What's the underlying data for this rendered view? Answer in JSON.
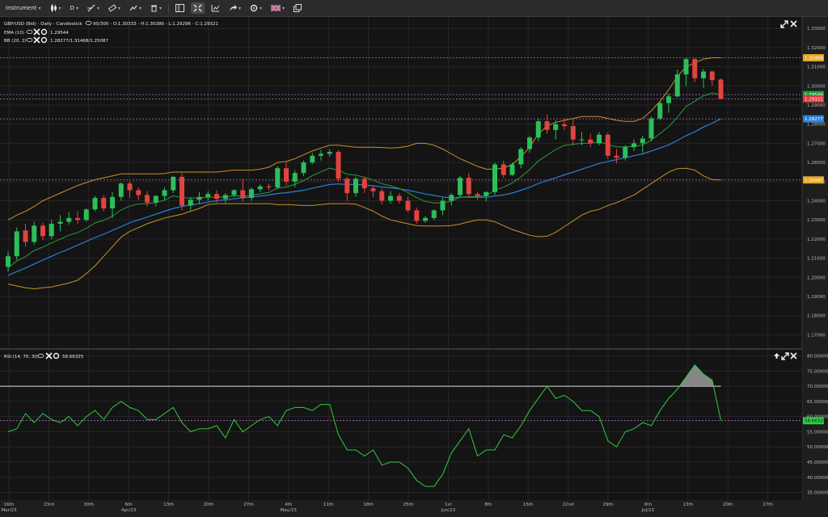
{
  "toolbar": {
    "instrument_label": "Instrument",
    "timeframe_label": "D",
    "icons": [
      "candlestick-icon",
      "draw-line-icon",
      "ruler-icon",
      "drawing-tools-icon",
      "trash-icon",
      "layout-icon",
      "fullscreen-icon",
      "chart-type-icon",
      "share-icon",
      "settings-icon",
      "flag-uk-icon",
      "window-icon"
    ]
  },
  "main_panel": {
    "legend_title": "GBP/USD (Bid) - Daily - Candlestick",
    "legend_ohlc": "90/300 - O:1.30333 - H:1.30386 - L:1.29296 - C:1.29321",
    "ema_label": "EMA (10)",
    "ema_value": "1.29544",
    "bb_label": "BB (20, 2)",
    "bb_value": "1.28277/1.31468/1.25087",
    "price_badges": [
      {
        "text": "1.31468",
        "price": 1.31468,
        "color": "#e4a62a"
      },
      {
        "text": "1.29544",
        "price": 1.29544,
        "color": "#1e9e3a"
      },
      {
        "text": "1.29321",
        "price": 1.29321,
        "color": "#d93a3a"
      },
      {
        "text": "1.28277",
        "price": 1.28277,
        "color": "#2a7fd6"
      },
      {
        "text": "1.25087",
        "price": 1.25087,
        "color": "#e4a62a"
      }
    ],
    "horizontal_lines": [
      1.31468,
      1.29544,
      1.29321,
      1.28277,
      1.25087
    ]
  },
  "rsi_panel": {
    "label": "RSI (14, 70, 30)",
    "value": "58.66325",
    "value_num": 58.66325,
    "level_line": 70,
    "badge_color": "#2ecc40"
  },
  "x_axis": {
    "labels": [
      "16th\nMar/23",
      "23rd",
      "30th",
      "6th\nApr/23",
      "13th",
      "20th",
      "27th",
      "4th\nMay/23",
      "11th",
      "18th",
      "25th",
      "1st\nJun/23",
      "8th",
      "15th",
      "22nd",
      "29th",
      "6th\nJul/23",
      "13th",
      "20th",
      "27th"
    ]
  },
  "chart_data": [
    {
      "type": "candlestick",
      "title": "GBP/USD (Bid) - Daily - Candlestick",
      "y_ticks": [
        1.17,
        1.18,
        1.19,
        1.2,
        1.21,
        1.22,
        1.23,
        1.24,
        1.25,
        1.26,
        1.27,
        1.28,
        1.29,
        1.3,
        1.31,
        1.32,
        1.33
      ],
      "y_tick_labels": [
        "1.17000",
        "1.18000",
        "1.19000",
        "1.20000",
        "1.21000",
        "1.22000",
        "1.23000",
        "1.24000",
        "1.25000",
        "1.26000",
        "1.27000",
        "1.28000",
        "1.29000",
        "1.30000",
        "1.31000",
        "1.32000",
        "1.33000"
      ],
      "ylim": [
        1.163,
        1.336
      ],
      "candles": [
        [
          1.2055,
          1.2135,
          1.203,
          1.211
        ],
        [
          1.211,
          1.226,
          1.209,
          1.224
        ],
        [
          1.2245,
          1.228,
          1.216,
          1.2185
        ],
        [
          1.2185,
          1.229,
          1.217,
          1.227
        ],
        [
          1.227,
          1.2285,
          1.2195,
          1.2215
        ],
        [
          1.2215,
          1.23,
          1.22,
          1.228
        ],
        [
          1.228,
          1.2325,
          1.224,
          1.229
        ],
        [
          1.229,
          1.234,
          1.2275,
          1.231
        ],
        [
          1.231,
          1.2345,
          1.228,
          1.23
        ],
        [
          1.23,
          1.236,
          1.229,
          1.2355
        ],
        [
          1.2355,
          1.2425,
          1.2345,
          1.2415
        ],
        [
          1.2415,
          1.243,
          1.2345,
          1.236
        ],
        [
          1.236,
          1.2445,
          1.231,
          1.242
        ],
        [
          1.242,
          1.2495,
          1.24,
          1.249
        ],
        [
          1.249,
          1.25,
          1.2415,
          1.2455
        ],
        [
          1.2455,
          1.247,
          1.2405,
          1.243
        ],
        [
          1.243,
          1.245,
          1.237,
          1.239
        ],
        [
          1.239,
          1.243,
          1.237,
          1.2425
        ],
        [
          1.2425,
          1.247,
          1.24,
          1.2455
        ],
        [
          1.2455,
          1.253,
          1.244,
          1.2525
        ],
        [
          1.2525,
          1.2545,
          1.235,
          1.2375
        ],
        [
          1.2375,
          1.242,
          1.235,
          1.2405
        ],
        [
          1.2405,
          1.2445,
          1.2385,
          1.242
        ],
        [
          1.242,
          1.245,
          1.24,
          1.2435
        ],
        [
          1.2435,
          1.2455,
          1.239,
          1.241
        ],
        [
          1.241,
          1.244,
          1.239,
          1.243
        ],
        [
          1.243,
          1.246,
          1.242,
          1.2455
        ],
        [
          1.2455,
          1.2515,
          1.2395,
          1.2415
        ],
        [
          1.2415,
          1.247,
          1.24,
          1.246
        ],
        [
          1.246,
          1.2485,
          1.2445,
          1.2475
        ],
        [
          1.2475,
          1.249,
          1.2455,
          1.247
        ],
        [
          1.247,
          1.258,
          1.246,
          1.257
        ],
        [
          1.257,
          1.26,
          1.248,
          1.25
        ],
        [
          1.25,
          1.256,
          1.247,
          1.2545
        ],
        [
          1.2545,
          1.261,
          1.253,
          1.26
        ],
        [
          1.26,
          1.265,
          1.259,
          1.2635
        ],
        [
          1.2635,
          1.2665,
          1.261,
          1.2645
        ],
        [
          1.2645,
          1.267,
          1.263,
          1.2655
        ],
        [
          1.2655,
          1.2665,
          1.25,
          1.2515
        ],
        [
          1.2515,
          1.2525,
          1.24,
          1.244
        ],
        [
          1.244,
          1.2525,
          1.242,
          1.2515
        ],
        [
          1.2515,
          1.2525,
          1.244,
          1.2465
        ],
        [
          1.2465,
          1.248,
          1.242,
          1.245
        ],
        [
          1.245,
          1.2465,
          1.238,
          1.24
        ],
        [
          1.24,
          1.245,
          1.2385,
          1.2425
        ],
        [
          1.2425,
          1.244,
          1.2385,
          1.24
        ],
        [
          1.24,
          1.242,
          1.234,
          1.235
        ],
        [
          1.235,
          1.2365,
          1.228,
          1.2295
        ],
        [
          1.2295,
          1.232,
          1.2285,
          1.231
        ],
        [
          1.231,
          1.2355,
          1.23,
          1.235
        ],
        [
          1.235,
          1.2415,
          1.2325,
          1.24
        ],
        [
          1.24,
          1.244,
          1.2375,
          1.243
        ],
        [
          1.243,
          1.253,
          1.2415,
          1.252
        ],
        [
          1.252,
          1.2545,
          1.242,
          1.2435
        ],
        [
          1.2435,
          1.2445,
          1.2405,
          1.2425
        ],
        [
          1.2425,
          1.245,
          1.2395,
          1.2445
        ],
        [
          1.2445,
          1.26,
          1.243,
          1.259
        ],
        [
          1.259,
          1.261,
          1.252,
          1.2535
        ],
        [
          1.2535,
          1.26,
          1.253,
          1.259
        ],
        [
          1.259,
          1.268,
          1.257,
          1.267
        ],
        [
          1.267,
          1.274,
          1.265,
          1.273
        ],
        [
          1.273,
          1.283,
          1.271,
          1.2815
        ],
        [
          1.2815,
          1.285,
          1.275,
          1.277
        ],
        [
          1.277,
          1.282,
          1.272,
          1.28
        ],
        [
          1.28,
          1.283,
          1.277,
          1.279
        ],
        [
          1.279,
          1.283,
          1.269,
          1.272
        ],
        [
          1.272,
          1.276,
          1.269,
          1.272
        ],
        [
          1.272,
          1.275,
          1.268,
          1.27
        ],
        [
          1.27,
          1.276,
          1.269,
          1.2745
        ],
        [
          1.2745,
          1.2755,
          1.262,
          1.2635
        ],
        [
          1.2635,
          1.267,
          1.2595,
          1.2625
        ],
        [
          1.2625,
          1.269,
          1.261,
          1.268
        ],
        [
          1.268,
          1.272,
          1.266,
          1.27
        ],
        [
          1.27,
          1.274,
          1.265,
          1.2725
        ],
        [
          1.2725,
          1.284,
          1.271,
          1.283
        ],
        [
          1.283,
          1.292,
          1.282,
          1.291
        ],
        [
          1.291,
          1.296,
          1.286,
          1.2945
        ],
        [
          1.2945,
          1.3085,
          1.294,
          1.306
        ],
        [
          1.306,
          1.3145,
          1.3,
          1.314
        ],
        [
          1.314,
          1.3145,
          1.302,
          1.304
        ],
        [
          1.304,
          1.309,
          1.299,
          1.3075
        ],
        [
          1.3075,
          1.308,
          1.3,
          1.303
        ],
        [
          1.3033,
          1.3039,
          1.293,
          1.2932
        ]
      ],
      "ema": [
        1.205,
        1.2085,
        1.2108,
        1.214,
        1.2158,
        1.218,
        1.22,
        1.222,
        1.2234,
        1.2256,
        1.2284,
        1.2298,
        1.232,
        1.2352,
        1.2372,
        1.2383,
        1.2384,
        1.2391,
        1.2403,
        1.2426,
        1.2416,
        1.2414,
        1.2415,
        1.2419,
        1.2418,
        1.242,
        1.2426,
        1.2423,
        1.2429,
        1.2437,
        1.2443,
        1.2466,
        1.2472,
        1.2486,
        1.2506,
        1.2531,
        1.2551,
        1.257,
        1.256,
        1.2538,
        1.2534,
        1.2522,
        1.2509,
        1.2489,
        1.2478,
        1.2464,
        1.2443,
        1.2416,
        1.2397,
        1.2388,
        1.239,
        1.2397,
        1.2419,
        1.2421,
        1.2422,
        1.2426,
        1.2456,
        1.2471,
        1.2493,
        1.2525,
        1.2562,
        1.2608,
        1.2638,
        1.2667,
        1.2689,
        1.2695,
        1.27,
        1.27,
        1.2708,
        1.2694,
        1.2681,
        1.2681,
        1.2684,
        1.2691,
        1.2716,
        1.2752,
        1.2787,
        1.2837,
        1.2893,
        1.292,
        1.2948,
        1.2963,
        1.2954
      ],
      "bb_mid": [
        1.201,
        1.203,
        1.2048,
        1.207,
        1.209,
        1.211,
        1.213,
        1.2148,
        1.2168,
        1.2188,
        1.2208,
        1.2225,
        1.2245,
        1.2265,
        1.2285,
        1.23,
        1.2315,
        1.233,
        1.2345,
        1.236,
        1.237,
        1.2378,
        1.2385,
        1.2393,
        1.24,
        1.2405,
        1.241,
        1.2415,
        1.242,
        1.2425,
        1.243,
        1.2438,
        1.2442,
        1.2448,
        1.2455,
        1.2465,
        1.2475,
        1.2485,
        1.2488,
        1.2485,
        1.2485,
        1.2482,
        1.2478,
        1.2472,
        1.2468,
        1.2462,
        1.2455,
        1.2445,
        1.2435,
        1.2428,
        1.242,
        1.2415,
        1.2418,
        1.2418,
        1.2418,
        1.2418,
        1.2425,
        1.243,
        1.244,
        1.2455,
        1.247,
        1.249,
        1.2505,
        1.252,
        1.2535,
        1.255,
        1.2565,
        1.258,
        1.2595,
        1.2605,
        1.2615,
        1.2625,
        1.2635,
        1.2645,
        1.266,
        1.2675,
        1.2692,
        1.2715,
        1.274,
        1.276,
        1.2785,
        1.2805,
        1.2828
      ],
      "bb_upper": [
        1.23,
        1.2325,
        1.2345,
        1.237,
        1.24,
        1.242,
        1.244,
        1.246,
        1.248,
        1.2495,
        1.251,
        1.252,
        1.253,
        1.254,
        1.254,
        1.254,
        1.254,
        1.254,
        1.2542,
        1.255,
        1.255,
        1.255,
        1.255,
        1.255,
        1.255,
        1.2555,
        1.256,
        1.256,
        1.256,
        1.2565,
        1.2575,
        1.26,
        1.2605,
        1.262,
        1.264,
        1.266,
        1.2675,
        1.269,
        1.269,
        1.2685,
        1.268,
        1.268,
        1.268,
        1.2678,
        1.2675,
        1.2678,
        1.2685,
        1.27,
        1.27,
        1.269,
        1.267,
        1.2645,
        1.262,
        1.26,
        1.258,
        1.2565,
        1.2565,
        1.257,
        1.259,
        1.263,
        1.268,
        1.275,
        1.279,
        1.281,
        1.282,
        1.283,
        1.284,
        1.284,
        1.284,
        1.283,
        1.282,
        1.2815,
        1.2815,
        1.283,
        1.287,
        1.292,
        1.298,
        1.305,
        1.31,
        1.312,
        1.314,
        1.3147,
        1.3147
      ],
      "bb_lower": [
        1.1965,
        1.1955,
        1.1945,
        1.194,
        1.1945,
        1.195,
        1.196,
        1.197,
        1.1985,
        1.202,
        1.206,
        1.211,
        1.216,
        1.221,
        1.224,
        1.226,
        1.228,
        1.2295,
        1.231,
        1.232,
        1.233,
        1.2345,
        1.236,
        1.238,
        1.2385,
        1.2385,
        1.2385,
        1.2385,
        1.2385,
        1.2385,
        1.2385,
        1.238,
        1.238,
        1.2378,
        1.2375,
        1.2375,
        1.238,
        1.2385,
        1.2385,
        1.2385,
        1.2382,
        1.2365,
        1.2345,
        1.232,
        1.23,
        1.229,
        1.228,
        1.227,
        1.2268,
        1.2268,
        1.2268,
        1.227,
        1.2278,
        1.229,
        1.23,
        1.23,
        1.229,
        1.227,
        1.225,
        1.2235,
        1.222,
        1.2212,
        1.2215,
        1.2235,
        1.2265,
        1.2295,
        1.2325,
        1.2345,
        1.2355,
        1.2375,
        1.239,
        1.241,
        1.243,
        1.246,
        1.249,
        1.252,
        1.255,
        1.2568,
        1.257,
        1.256,
        1.253,
        1.251,
        1.2509
      ]
    },
    {
      "type": "line",
      "title": "RSI (14, 70, 30)",
      "y_ticks": [
        35,
        40,
        45,
        50,
        55,
        60,
        65,
        70,
        75,
        80
      ],
      "y_tick_labels": [
        "35.00000",
        "40.00000",
        "45.00000",
        "50.00000",
        "55.00000",
        "60.00000",
        "65.00000",
        "70.00000",
        "75.00000",
        "80.00000"
      ],
      "ylim": [
        32.5,
        82
      ],
      "values": [
        55,
        56,
        61,
        58,
        61,
        59,
        58,
        60,
        57,
        60,
        62,
        59,
        63,
        65,
        63,
        62,
        59,
        59,
        61,
        63,
        58,
        55,
        56,
        56,
        57,
        53,
        59,
        55,
        57,
        59,
        60,
        57,
        62,
        63,
        63,
        62,
        64,
        64,
        54,
        49,
        49,
        47,
        49,
        44,
        45,
        45,
        43,
        39,
        37,
        37,
        41,
        48,
        52,
        56,
        47,
        49,
        49,
        54,
        53,
        57,
        62,
        66,
        70,
        66,
        67,
        65,
        62,
        62,
        60,
        52,
        50,
        55,
        56,
        58,
        57,
        62,
        66,
        69,
        73,
        77,
        74,
        72,
        58.7
      ],
      "level": 70
    }
  ]
}
